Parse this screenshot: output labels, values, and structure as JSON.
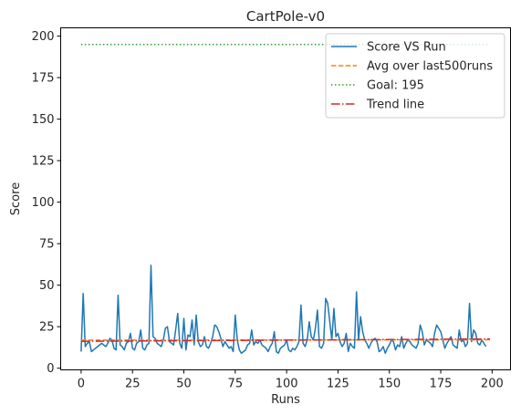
{
  "chart_data": {
    "type": "line",
    "title": "CartPole-v0",
    "xlabel": "Runs",
    "ylabel": "Score",
    "xlim": [
      -9.95,
      208.95
    ],
    "ylim": [
      -1,
      205
    ],
    "xticks": [
      0,
      25,
      50,
      75,
      100,
      125,
      150,
      175,
      200
    ],
    "yticks": [
      0,
      25,
      50,
      75,
      100,
      125,
      150,
      175,
      200
    ],
    "grid": false,
    "legend": "top-right",
    "colors": {
      "score": "#1f77b4",
      "avg": "#ff7f0e",
      "goal": "#2ca02c",
      "trend": "#d62728"
    },
    "series": [
      {
        "name": "Score VS Run",
        "style": "solid",
        "x_start": 0,
        "values": [
          10,
          45,
          13,
          15,
          16,
          10,
          11,
          12,
          13,
          14,
          15,
          14,
          13,
          15,
          18,
          17,
          12,
          11,
          44,
          14,
          13,
          11,
          15,
          16,
          21,
          12,
          11,
          15,
          16,
          23,
          12,
          11,
          14,
          15,
          62,
          19,
          18,
          15,
          14,
          13,
          17,
          24,
          25,
          16,
          15,
          14,
          23,
          33,
          15,
          12,
          30,
          11,
          20,
          19,
          29,
          14,
          32,
          16,
          13,
          14,
          19,
          13,
          12,
          15,
          19,
          26,
          25,
          22,
          18,
          13,
          16,
          14,
          12,
          13,
          10,
          32,
          17,
          11,
          9,
          10,
          11,
          14,
          15,
          23,
          14,
          16,
          15,
          17,
          14,
          13,
          12,
          10,
          13,
          15,
          22,
          10,
          9,
          12,
          13,
          14,
          17,
          11,
          10,
          12,
          11,
          13,
          16,
          38,
          15,
          13,
          17,
          28,
          19,
          17,
          24,
          35,
          13,
          12,
          15,
          42,
          39,
          28,
          17,
          36,
          19,
          21,
          16,
          13,
          15,
          21,
          10,
          15,
          13,
          12,
          46,
          17,
          31,
          22,
          17,
          15,
          12,
          15,
          17,
          18,
          16,
          10,
          11,
          13,
          9,
          12,
          14,
          17,
          16,
          11,
          14,
          13,
          19,
          12,
          15,
          17,
          16,
          14,
          13,
          12,
          15,
          26,
          22,
          14,
          17,
          16,
          15,
          13,
          21,
          26,
          24,
          22,
          17,
          12,
          15,
          17,
          19,
          14,
          13,
          12,
          23,
          16,
          17,
          13,
          15,
          39,
          16,
          23,
          21,
          15,
          14,
          17,
          15,
          13
        ]
      },
      {
        "name": "Avg over last500runs",
        "style": "dashed",
        "x": [
          0,
          199
        ],
        "values": [
          16.9,
          17.1
        ]
      },
      {
        "name": "Goal: 195",
        "style": "dotted",
        "x": [
          0,
          199
        ],
        "values": [
          195,
          195
        ]
      },
      {
        "name": "Trend line",
        "style": "dashdot",
        "x": [
          0,
          199
        ],
        "values": [
          16.2,
          17.6
        ]
      }
    ]
  }
}
